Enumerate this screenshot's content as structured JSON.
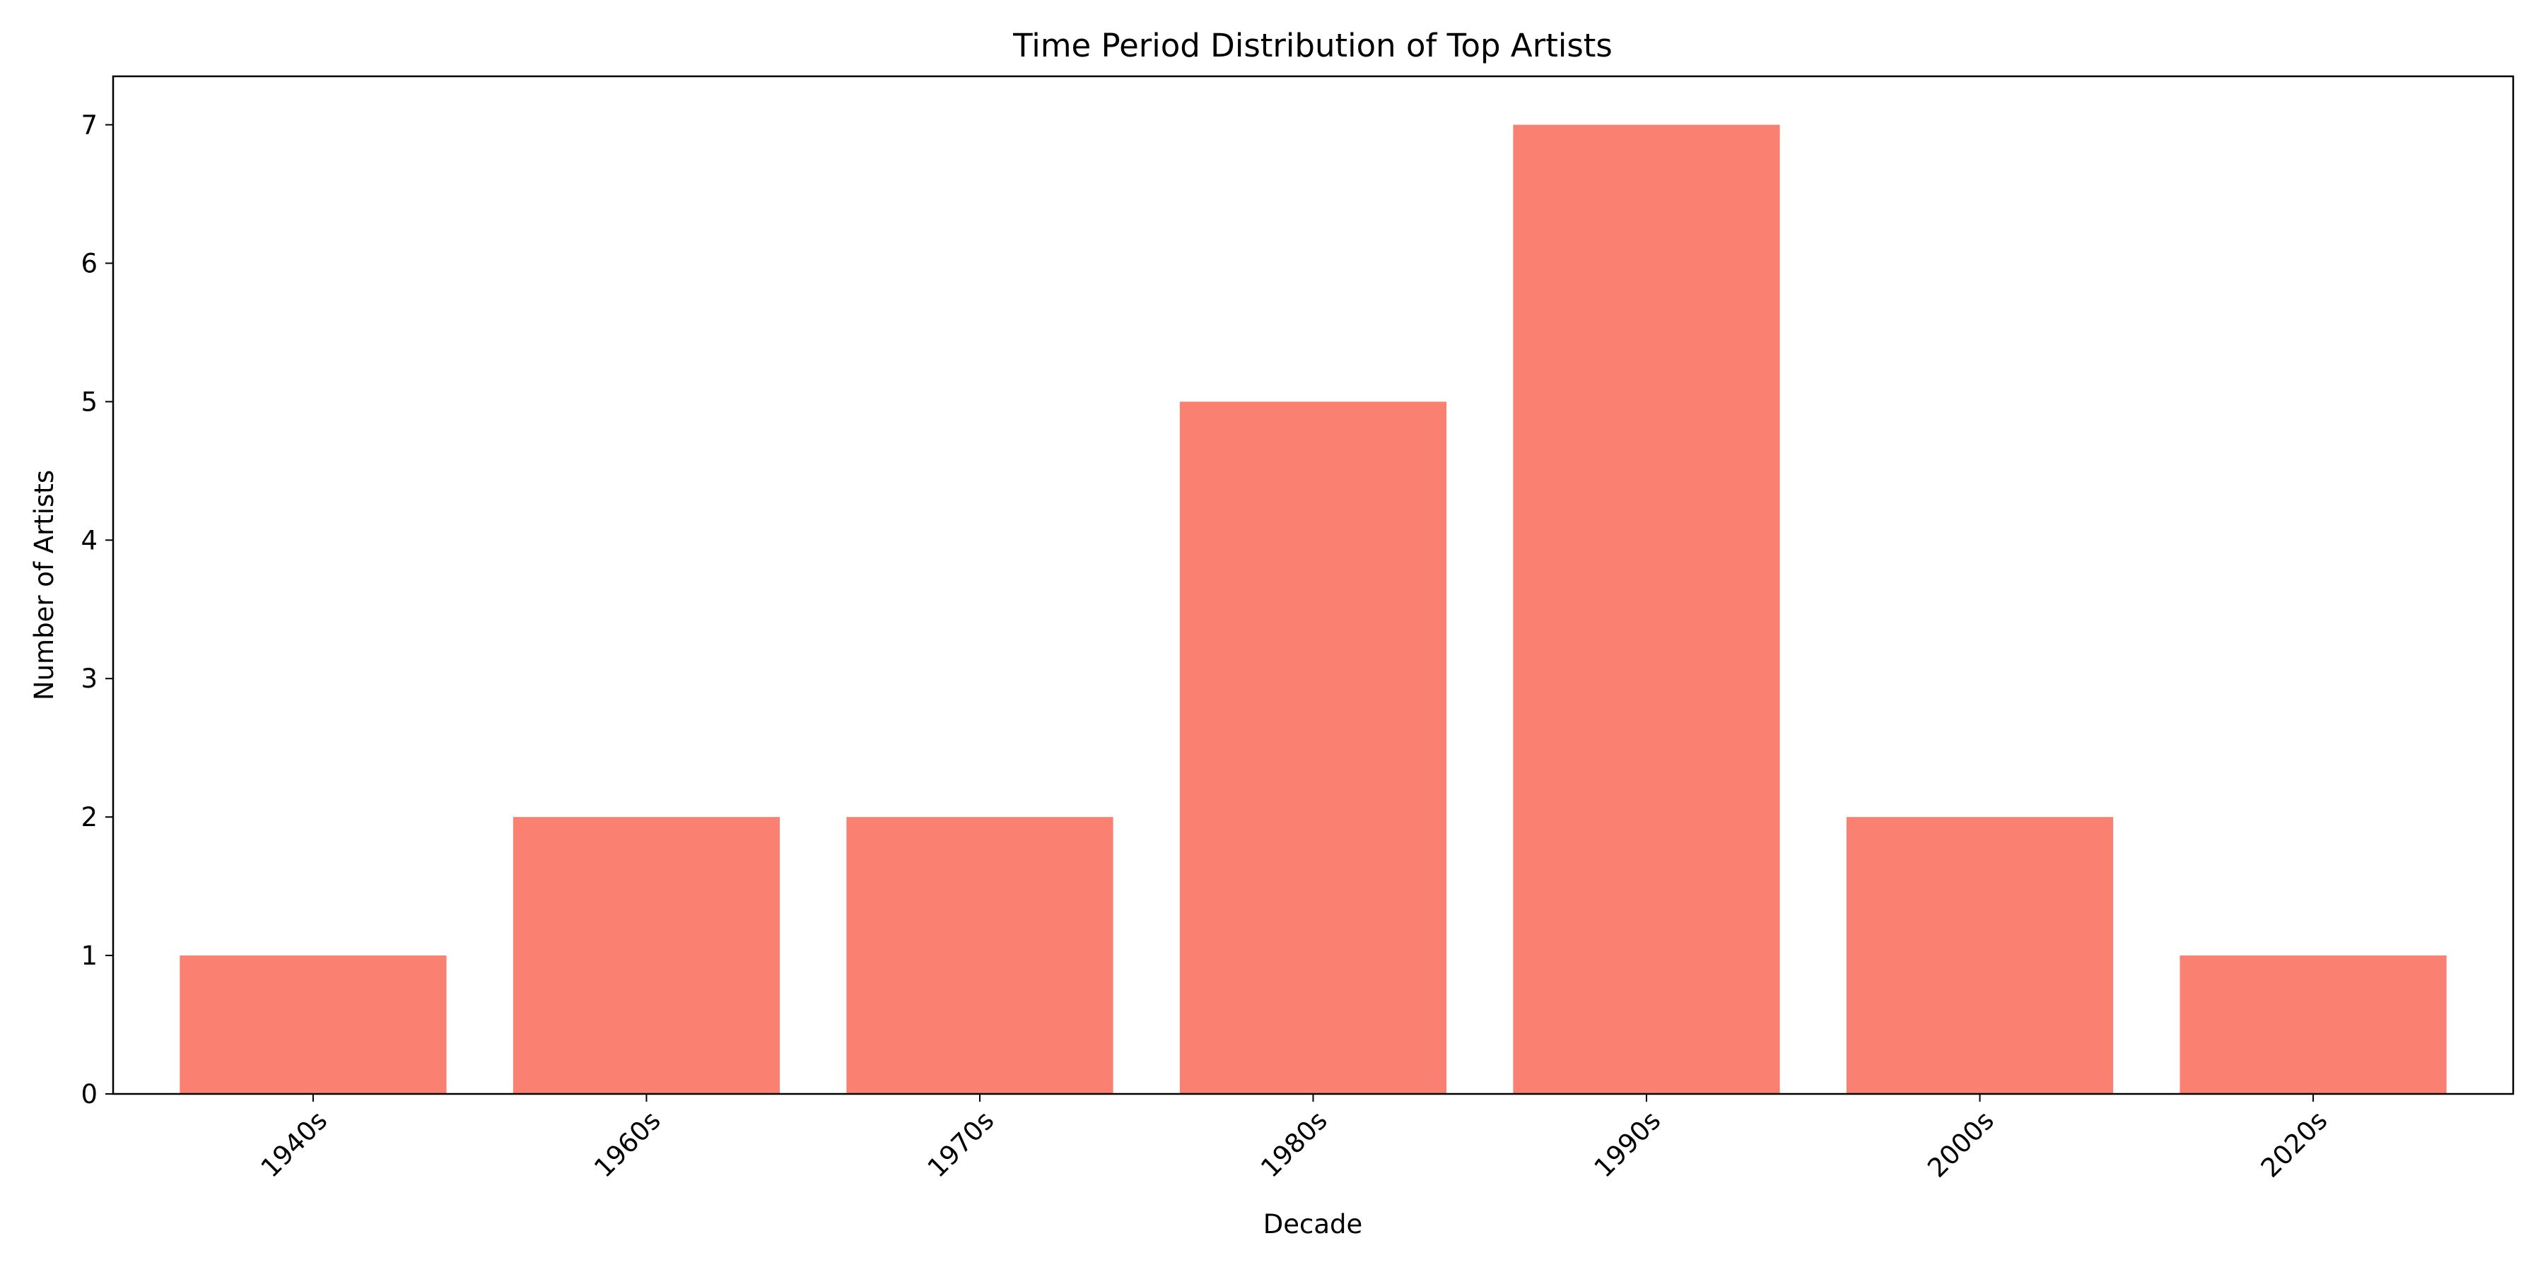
{
  "chart_data": {
    "type": "bar",
    "title": "Time Period Distribution of Top Artists",
    "xlabel": "Decade",
    "ylabel": "Number of Artists",
    "categories": [
      "1940s",
      "1960s",
      "1970s",
      "1980s",
      "1990s",
      "2000s",
      "2020s"
    ],
    "values": [
      1,
      2,
      2,
      5,
      7,
      2,
      1
    ],
    "ylim": [
      0,
      7.35
    ],
    "yticks": [
      "0",
      "1",
      "2",
      "3",
      "4",
      "5",
      "6",
      "7"
    ],
    "bar_color": "#fa8072",
    "grid": false,
    "legend": "none"
  }
}
